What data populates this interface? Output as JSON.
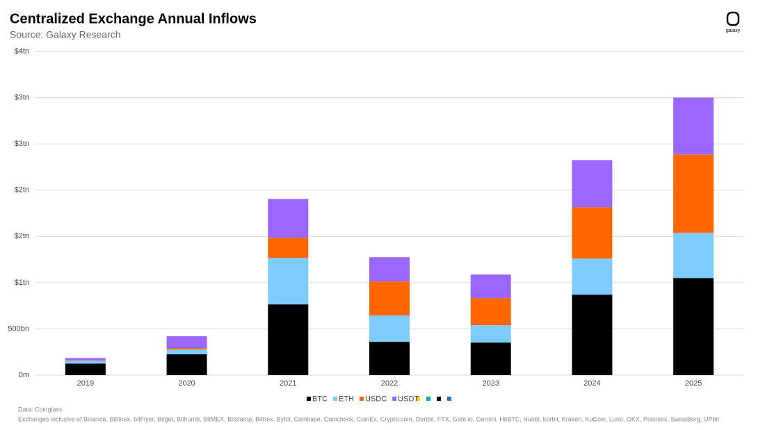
{
  "logo": "galaxy",
  "chart_data": {
    "type": "bar",
    "stacked": true,
    "title": "Centralized Exchange Annual Inflows",
    "subtitle": "Source: Galaxy Research",
    "notes": [
      "Data: Coinglass",
      "Exchanges inclusive of Binance, Bitfinex, bitFlyer, Bitget, Bithumb, BitMEX, Bitstamp, Bittrex, Bybit, Coinbase, Coincheck, CoinEx, Crypto.com, Deribit, FTX, Gate.io, Gemini, HitBTC, Huobi, korbit, Kraken, KuCoin, Luno, OKX, Poloniex, SwissBorg, UPbit"
    ],
    "categories": [
      "2019",
      "2020",
      "2021",
      "2022",
      "2023",
      "2024",
      "2025"
    ],
    "series": [
      {
        "name": "BTC",
        "color": "#000000",
        "values": [
          125,
          225,
          765,
          360,
          352,
          870,
          1050
        ]
      },
      {
        "name": "ETH",
        "color": "#7ecbfd",
        "values": [
          30,
          52,
          502,
          285,
          188,
          390,
          488
        ]
      },
      {
        "name": "USDC",
        "color": "#ff6600",
        "values": [
          5,
          15,
          218,
          368,
          292,
          555,
          848
        ]
      },
      {
        "name": "USDT",
        "color": "#9b66ff",
        "values": [
          25,
          128,
          420,
          262,
          255,
          510,
          615
        ]
      }
    ],
    "ylim": [
      0,
      3500
    ],
    "yticks": [
      {
        "value": 0,
        "label": "0m"
      },
      {
        "value": 500,
        "label": "500bn"
      },
      {
        "value": 1000,
        "label": "$1tn"
      },
      {
        "value": 1500,
        "label": "$2tn"
      },
      {
        "value": 2000,
        "label": "$2tn"
      },
      {
        "value": 2500,
        "label": "$3tn"
      },
      {
        "value": 3000,
        "label": "$3tn"
      },
      {
        "value": 3500,
        "label": "$4tn"
      }
    ],
    "grid": true
  }
}
